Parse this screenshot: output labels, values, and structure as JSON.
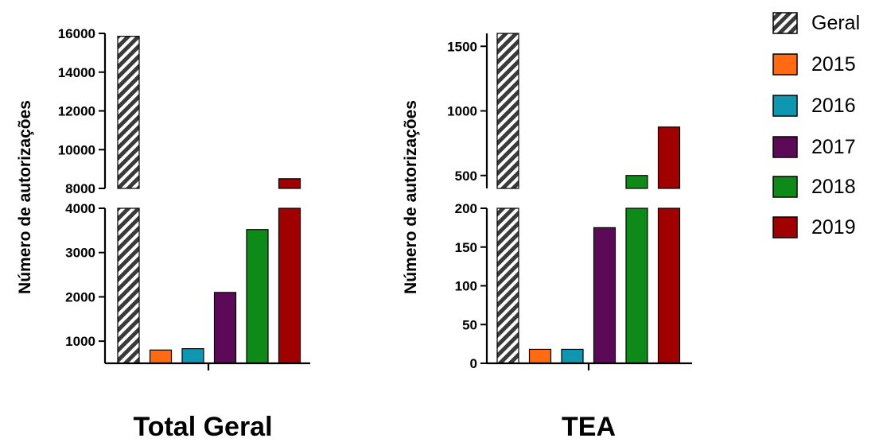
{
  "legend": [
    "Geral",
    "2015",
    "2016",
    "2017",
    "2018",
    "2019"
  ],
  "colors": {
    "Geral": "hatch",
    "2015": "#ff6a13",
    "2016": "#0f97b2",
    "2017": "#5c0a57",
    "2018": "#0e8a18",
    "2019": "#a10000"
  },
  "chart_data": [
    {
      "type": "bar",
      "title": "Total Geral",
      "ylabel": "Número de autorizações",
      "y_axis_break": true,
      "lower_segment": {
        "ylim": [
          500,
          4000
        ],
        "ticks": [
          "1000",
          "2000",
          "3000",
          "4000"
        ]
      },
      "upper_segment": {
        "ylim": [
          8000,
          16000
        ],
        "ticks": [
          "8000",
          "10000",
          "12000",
          "14000",
          "16000"
        ]
      },
      "series": [
        {
          "name": "Geral",
          "values": [
            15850
          ]
        },
        {
          "name": "2015",
          "values": [
            800
          ]
        },
        {
          "name": "2016",
          "values": [
            830
          ]
        },
        {
          "name": "2017",
          "values": [
            2100
          ]
        },
        {
          "name": "2018",
          "values": [
            3520
          ]
        },
        {
          "name": "2019",
          "values": [
            8500
          ]
        }
      ]
    },
    {
      "type": "bar",
      "title": "TEA",
      "ylabel": "Número de autorizações",
      "y_axis_break": true,
      "lower_segment": {
        "ylim": [
          0,
          200
        ],
        "ticks": [
          "0",
          "50",
          "100",
          "150",
          "200"
        ]
      },
      "upper_segment": {
        "ylim": [
          400,
          1600
        ],
        "ticks": [
          "500",
          "1000",
          "1500"
        ]
      },
      "series": [
        {
          "name": "Geral",
          "values": [
            1600
          ]
        },
        {
          "name": "2015",
          "values": [
            18
          ]
        },
        {
          "name": "2016",
          "values": [
            18
          ]
        },
        {
          "name": "2017",
          "values": [
            175
          ]
        },
        {
          "name": "2018",
          "values": [
            500
          ]
        },
        {
          "name": "2019",
          "values": [
            875
          ]
        }
      ]
    }
  ]
}
